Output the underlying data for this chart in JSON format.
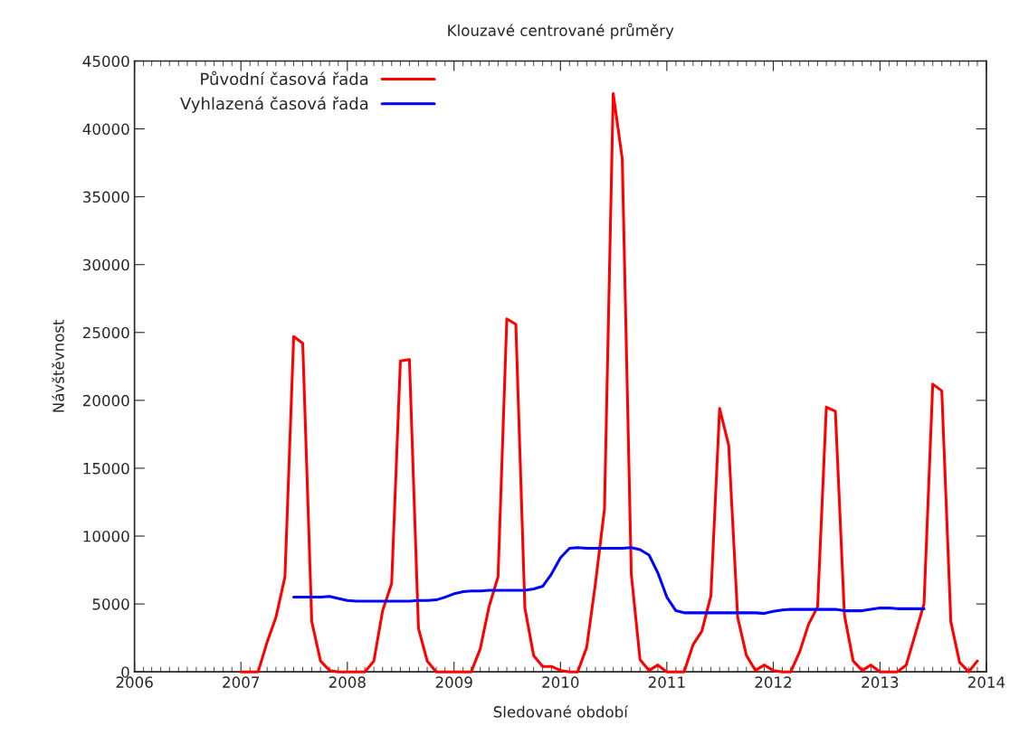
{
  "chart_data": {
    "type": "line",
    "title": "Klouzavé centrované průměry",
    "xlabel": "Sledované období",
    "ylabel": "Návštěvnost",
    "xlim": [
      "2006",
      "2014"
    ],
    "xticks": [
      "2006",
      "2007",
      "2008",
      "2009",
      "2010",
      "2011",
      "2012",
      "2013",
      "2014"
    ],
    "ylim": [
      0,
      45000
    ],
    "yticks": [
      0,
      5000,
      10000,
      15000,
      20000,
      25000,
      30000,
      35000,
      40000,
      45000
    ],
    "grid": false,
    "legend": "top left",
    "marker": "none",
    "line_style": "solid",
    "series": [
      {
        "name": "Původní časová řada",
        "color": "#ff0000",
        "x": [
          "2007-01",
          "2007-02",
          "2007-03",
          "2007-04",
          "2007-05",
          "2007-06",
          "2007-07",
          "2007-08",
          "2007-09",
          "2007-10",
          "2007-11",
          "2007-12",
          "2008-01",
          "2008-02",
          "2008-03",
          "2008-04",
          "2008-05",
          "2008-06",
          "2008-07",
          "2008-08",
          "2008-09",
          "2008-10",
          "2008-11",
          "2008-12",
          "2009-01",
          "2009-02",
          "2009-03",
          "2009-04",
          "2009-05",
          "2009-06",
          "2009-07",
          "2009-08",
          "2009-09",
          "2009-10",
          "2009-11",
          "2009-12",
          "2010-01",
          "2010-02",
          "2010-03",
          "2010-04",
          "2010-05",
          "2010-06",
          "2010-07",
          "2010-08",
          "2010-09",
          "2010-10",
          "2010-11",
          "2010-12",
          "2011-01",
          "2011-02",
          "2011-03",
          "2011-04",
          "2011-05",
          "2011-06",
          "2011-07",
          "2011-08",
          "2011-09",
          "2011-10",
          "2011-11",
          "2011-12",
          "2012-01",
          "2012-02",
          "2012-03",
          "2012-04",
          "2012-05",
          "2012-06",
          "2012-07",
          "2012-08",
          "2012-09",
          "2012-10",
          "2012-11",
          "2012-12",
          "2013-01",
          "2013-02",
          "2013-03",
          "2013-04",
          "2013-05",
          "2013-06",
          "2013-07",
          "2013-08",
          "2013-09",
          "2013-10",
          "2013-11",
          "2013-12"
        ],
        "values": [
          0,
          0,
          0,
          2200,
          4000,
          7000,
          24700,
          24200,
          3700,
          800,
          100,
          0,
          0,
          0,
          0,
          800,
          4500,
          6500,
          22900,
          23000,
          3200,
          800,
          0,
          0,
          0,
          0,
          0,
          1700,
          4800,
          7000,
          26000,
          25600,
          4700,
          1200,
          400,
          400,
          100,
          0,
          0,
          1800,
          6500,
          12000,
          42600,
          37800,
          7200,
          900,
          100,
          500,
          0,
          0,
          0,
          2000,
          3000,
          5600,
          19400,
          16700,
          4000,
          1200,
          100,
          500,
          100,
          0,
          0,
          1500,
          3500,
          4800,
          19500,
          19200,
          4200,
          800,
          100,
          500,
          0,
          0,
          0,
          500,
          2700,
          5000,
          21200,
          20700,
          3700,
          700,
          0,
          800
        ]
      },
      {
        "name": "Vyhlazená časová řada",
        "color": "#0000ff",
        "x": [
          "2007-07",
          "2007-08",
          "2007-09",
          "2007-10",
          "2007-11",
          "2007-12",
          "2008-01",
          "2008-02",
          "2008-03",
          "2008-04",
          "2008-05",
          "2008-06",
          "2008-07",
          "2008-08",
          "2008-09",
          "2008-10",
          "2008-11",
          "2008-12",
          "2009-01",
          "2009-02",
          "2009-03",
          "2009-04",
          "2009-05",
          "2009-06",
          "2009-07",
          "2009-08",
          "2009-09",
          "2009-10",
          "2009-11",
          "2009-12",
          "2010-01",
          "2010-02",
          "2010-03",
          "2010-04",
          "2010-05",
          "2010-06",
          "2010-07",
          "2010-08",
          "2010-09",
          "2010-10",
          "2010-11",
          "2010-12",
          "2011-01",
          "2011-02",
          "2011-03",
          "2011-04",
          "2011-05",
          "2011-06",
          "2011-07",
          "2011-08",
          "2011-09",
          "2011-10",
          "2011-11",
          "2011-12",
          "2012-01",
          "2012-02",
          "2012-03",
          "2012-04",
          "2012-05",
          "2012-06",
          "2012-07",
          "2012-08",
          "2012-09",
          "2012-10",
          "2012-11",
          "2012-12",
          "2013-01",
          "2013-02",
          "2013-03",
          "2013-04",
          "2013-05",
          "2013-06"
        ],
        "values": [
          5500,
          5500,
          5500,
          5500,
          5550,
          5400,
          5250,
          5200,
          5200,
          5200,
          5200,
          5200,
          5200,
          5200,
          5250,
          5250,
          5300,
          5500,
          5750,
          5900,
          5950,
          5950,
          6000,
          6000,
          6000,
          6000,
          6000,
          6100,
          6300,
          7200,
          8400,
          9100,
          9150,
          9100,
          9100,
          9100,
          9100,
          9100,
          9150,
          9000,
          8600,
          7300,
          5500,
          4500,
          4350,
          4350,
          4350,
          4350,
          4350,
          4350,
          4350,
          4350,
          4350,
          4300,
          4450,
          4550,
          4600,
          4600,
          4600,
          4600,
          4600,
          4600,
          4500,
          4500,
          4500,
          4600,
          4700,
          4700,
          4650,
          4650,
          4650,
          4650
        ]
      }
    ]
  }
}
